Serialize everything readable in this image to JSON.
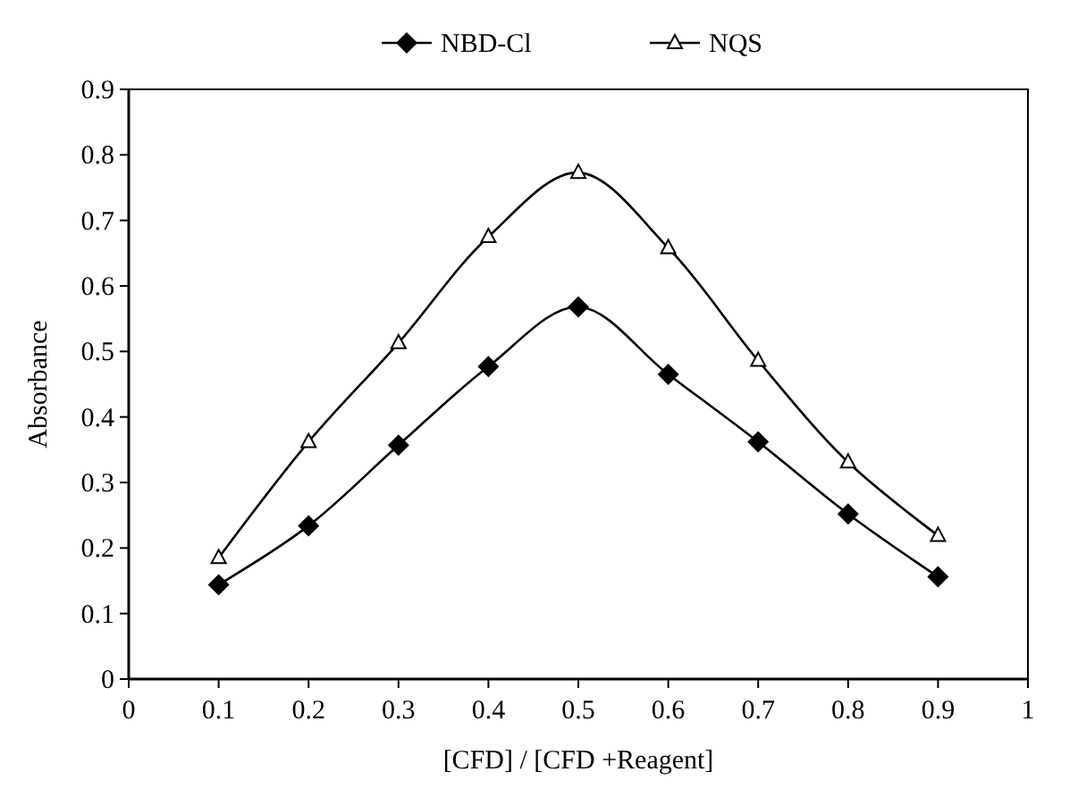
{
  "chart_data": {
    "type": "line",
    "xlabel": "[CFD] / [CFD +Reagent]",
    "ylabel": "Absorbance",
    "x": [
      0.1,
      0.2,
      0.3,
      0.4,
      0.5,
      0.6,
      0.7,
      0.8,
      0.9
    ],
    "series": [
      {
        "name": "NBD-Cl",
        "color": "#000000",
        "marker": "diamond",
        "values": [
          0.144,
          0.234,
          0.357,
          0.477,
          0.568,
          0.465,
          0.362,
          0.252,
          0.156
        ]
      },
      {
        "name": "NQS",
        "color": "#000000",
        "marker": "triangle",
        "values": [
          0.185,
          0.362,
          0.513,
          0.675,
          0.773,
          0.658,
          0.486,
          0.331,
          0.219
        ]
      }
    ],
    "xlim": [
      0,
      1
    ],
    "xticks": [
      0,
      0.1,
      0.2,
      0.3,
      0.4,
      0.5,
      0.6,
      0.7,
      0.8,
      0.9,
      1
    ],
    "ylim": [
      0,
      0.9
    ],
    "yticks": [
      0,
      0.1,
      0.2,
      0.3,
      0.4,
      0.5,
      0.6,
      0.7,
      0.8,
      0.9
    ],
    "grid": false,
    "legend": "top",
    "line_style": "solid"
  }
}
